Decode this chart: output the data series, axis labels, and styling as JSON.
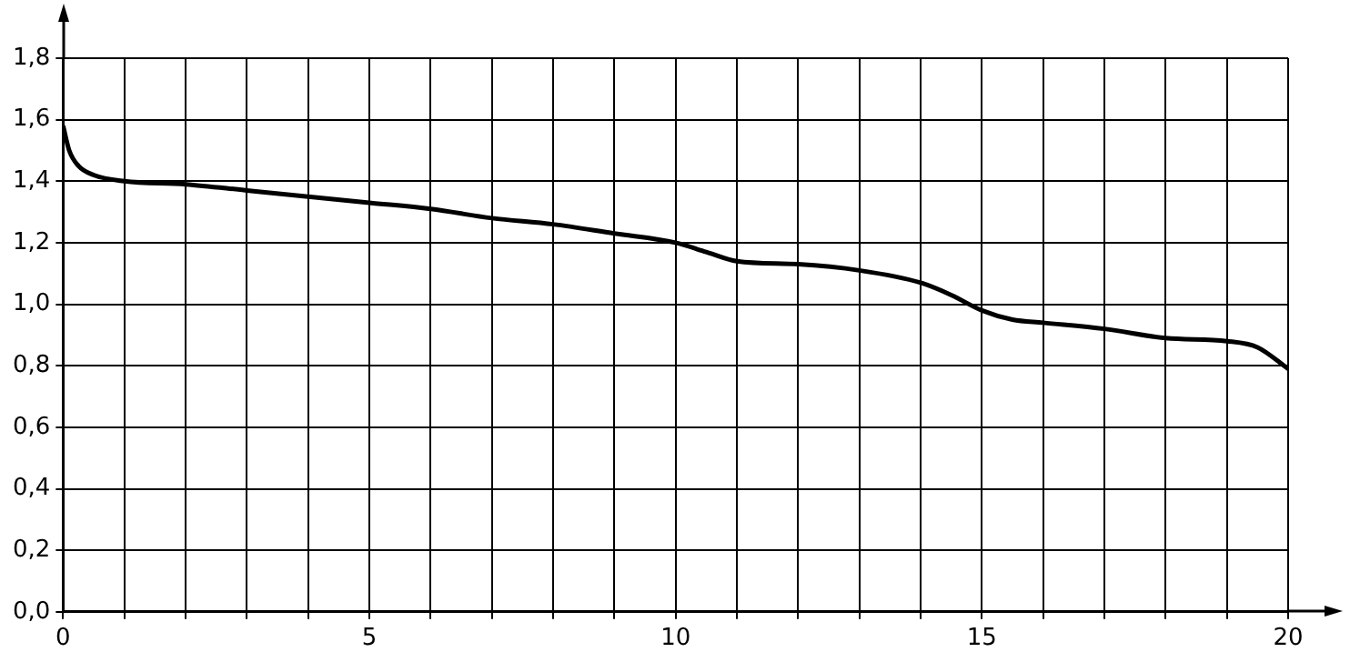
{
  "chart_data": {
    "type": "line",
    "x": [
      0,
      0.1,
      0.25,
      0.5,
      1,
      2,
      3,
      4,
      5,
      6,
      7,
      8,
      9,
      10,
      10.5,
      11,
      12,
      13,
      14,
      14.5,
      15,
      15.5,
      16,
      17,
      18,
      19,
      19.5,
      20
    ],
    "values": [
      1.58,
      1.5,
      1.45,
      1.42,
      1.4,
      1.39,
      1.37,
      1.35,
      1.33,
      1.31,
      1.28,
      1.26,
      1.23,
      1.2,
      1.17,
      1.14,
      1.13,
      1.11,
      1.07,
      1.03,
      0.98,
      0.95,
      0.94,
      0.92,
      0.89,
      0.88,
      0.86,
      0.79
    ],
    "color": "#000000",
    "marker": "none",
    "line_style": "solid",
    "grid": true,
    "legend": false,
    "xlim": [
      0,
      20
    ],
    "ylim": [
      0,
      1.8
    ],
    "xticks": [
      0,
      {
        "value": 1,
        "label": null
      },
      {
        "value": 2,
        "label": null
      },
      {
        "value": 3,
        "label": null
      },
      {
        "value": 4,
        "label": null
      },
      5,
      {
        "value": 6,
        "label": null
      },
      {
        "value": 7,
        "label": null
      },
      {
        "value": 8,
        "label": null
      },
      {
        "value": 9,
        "label": null
      },
      10,
      {
        "value": 11,
        "label": null
      },
      {
        "value": 12,
        "label": null
      },
      {
        "value": 13,
        "label": null
      },
      {
        "value": 14,
        "label": null
      },
      15,
      {
        "value": 16,
        "label": null
      },
      {
        "value": 17,
        "label": null
      },
      {
        "value": 18,
        "label": null
      },
      {
        "value": 19,
        "label": null
      },
      20
    ],
    "yticks": [
      {
        "value": 0,
        "label": "0,0"
      },
      {
        "value": 0.2,
        "label": "0,2"
      },
      {
        "value": 0.4,
        "label": "0,4"
      },
      {
        "value": 0.6,
        "label": "0,6"
      },
      {
        "value": 0.8,
        "label": "0,8"
      },
      {
        "value": 1,
        "label": "1,0"
      },
      {
        "value": 1.2,
        "label": "1,2"
      },
      {
        "value": 1.4,
        "label": "1,4"
      },
      {
        "value": 1.6,
        "label": "1,6"
      },
      {
        "value": 1.8,
        "label": "1,8"
      }
    ]
  }
}
